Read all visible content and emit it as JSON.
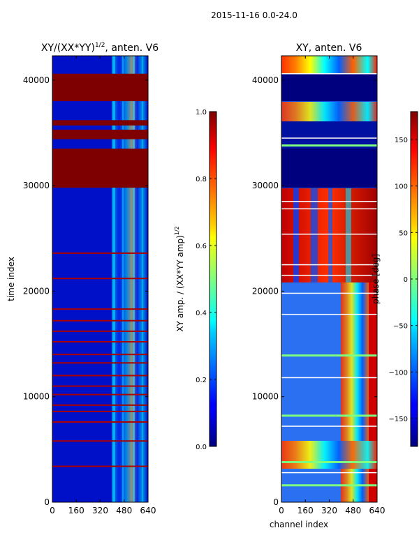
{
  "suptitle": "2015-11-16 0.0-24.0",
  "colors": {
    "band_saturated": "#7f0000",
    "band_low": "#00007f",
    "base_blue": "#0010c8",
    "line_red": "#aa0000",
    "line_white": "#ffffff",
    "line_green": "#7fff7f"
  },
  "chart_data": [
    {
      "type": "heatmap",
      "title": "XY/(XX*YY)",
      "title_superscript": "1/2",
      "title_suffix": ", anten. V6",
      "xlabel": "",
      "ylabel": "time index",
      "xlim": [
        0,
        640
      ],
      "ylim": [
        0,
        42300
      ],
      "xticks": [
        "0",
        "160",
        "320",
        "480",
        "640"
      ],
      "xtick_values": [
        0,
        160,
        320,
        480,
        640
      ],
      "yticks": [
        "0",
        "10000",
        "20000",
        "30000",
        "40000"
      ],
      "ytick_values": [
        0,
        10000,
        20000,
        30000,
        40000
      ],
      "colorbar": {
        "label": "XY amp. / (XX*YY amp)",
        "label_superscript": "1/2",
        "range": [
          0.0,
          1.0
        ],
        "ticks": [
          "0.0",
          "0.2",
          "0.4",
          "0.6",
          "0.8",
          "1.0"
        ],
        "tick_values": [
          0.0,
          0.2,
          0.4,
          0.6,
          0.8,
          1.0
        ],
        "colormap": "jet"
      },
      "saturated_bands_time": [
        [
          29800,
          33500
        ],
        [
          34400,
          35300
        ],
        [
          35700,
          36200
        ],
        [
          38000,
          40600
        ]
      ],
      "flagged_rows_time": [
        3400,
        5800,
        7600,
        8600,
        9200,
        10200,
        11000,
        12000,
        13200,
        14000,
        15200,
        16200,
        17200,
        18300,
        21200,
        23600
      ]
    },
    {
      "type": "heatmap",
      "title": "XY, anten. V6",
      "xlabel": "channel index",
      "ylabel": "",
      "xlim": [
        0,
        640
      ],
      "ylim": [
        0,
        42300
      ],
      "xticks": [
        "0",
        "160",
        "320",
        "480",
        "640"
      ],
      "xtick_values": [
        0,
        160,
        320,
        480,
        640
      ],
      "yticks": [
        "0",
        "10000",
        "20000",
        "30000",
        "40000"
      ],
      "ytick_values": [
        0,
        10000,
        20000,
        30000,
        40000
      ],
      "colorbar": {
        "label": "phase [deg]",
        "range": [
          -180,
          180
        ],
        "ticks": [
          "−150",
          "−100",
          "−50",
          "0",
          "50",
          "100",
          "150"
        ],
        "tick_values": [
          -150,
          -100,
          -50,
          0,
          50,
          100,
          150
        ],
        "colormap": "jet"
      },
      "low_bands_time": [
        [
          29800,
          33500
        ],
        [
          38000,
          40600
        ]
      ],
      "white_rows_time": [
        2800,
        7200,
        11800,
        17800,
        19800,
        21500,
        22500,
        25400,
        27800,
        28500,
        34500,
        40600
      ],
      "green_rows_time": [
        1600,
        3800,
        8200,
        13900,
        33800
      ]
    }
  ]
}
